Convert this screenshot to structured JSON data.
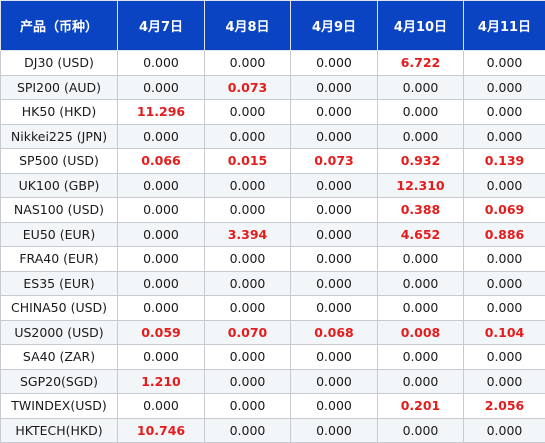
{
  "table": {
    "headers": [
      "产品（币种）",
      "4月7日",
      "4月8日",
      "4月9日",
      "4月10日",
      "4月11日"
    ],
    "rows": [
      [
        "DJ30 (USD)",
        "0.000",
        "0.000",
        "0.000",
        "6.722",
        "0.000"
      ],
      [
        "SPI200 (AUD)",
        "0.000",
        "0.073",
        "0.000",
        "0.000",
        "0.000"
      ],
      [
        "HK50 (HKD)",
        "11.296",
        "0.000",
        "0.000",
        "0.000",
        "0.000"
      ],
      [
        "Nikkei225 (JPN)",
        "0.000",
        "0.000",
        "0.000",
        "0.000",
        "0.000"
      ],
      [
        "SP500 (USD)",
        "0.066",
        "0.015",
        "0.073",
        "0.932",
        "0.139"
      ],
      [
        "UK100 (GBP)",
        "0.000",
        "0.000",
        "0.000",
        "12.310",
        "0.000"
      ],
      [
        "NAS100 (USD)",
        "0.000",
        "0.000",
        "0.000",
        "0.388",
        "0.069"
      ],
      [
        "EU50 (EUR)",
        "0.000",
        "3.394",
        "0.000",
        "4.652",
        "0.886"
      ],
      [
        "FRA40 (EUR)",
        "0.000",
        "0.000",
        "0.000",
        "0.000",
        "0.000"
      ],
      [
        "ES35 (EUR)",
        "0.000",
        "0.000",
        "0.000",
        "0.000",
        "0.000"
      ],
      [
        "CHINA50 (USD)",
        "0.000",
        "0.000",
        "0.000",
        "0.000",
        "0.000"
      ],
      [
        "US2000 (USD)",
        "0.059",
        "0.070",
        "0.068",
        "0.008",
        "0.104"
      ],
      [
        "SA40 (ZAR)",
        "0.000",
        "0.000",
        "0.000",
        "0.000",
        "0.000"
      ],
      [
        "SGP20(SGD)",
        "1.210",
        "0.000",
        "0.000",
        "0.000",
        "0.000"
      ],
      [
        "TWINDEX(USD)",
        "0.000",
        "0.000",
        "0.000",
        "0.201",
        "2.056"
      ],
      [
        "HKTECH(HKD)",
        "10.746",
        "0.000",
        "0.000",
        "0.000",
        "0.000"
      ]
    ]
  },
  "colors": {
    "header_bg": "#0a44c2",
    "header_text": "#ffffff",
    "highlight_text": "#e51c1c",
    "stripe_bg": "#f3f6f9"
  }
}
